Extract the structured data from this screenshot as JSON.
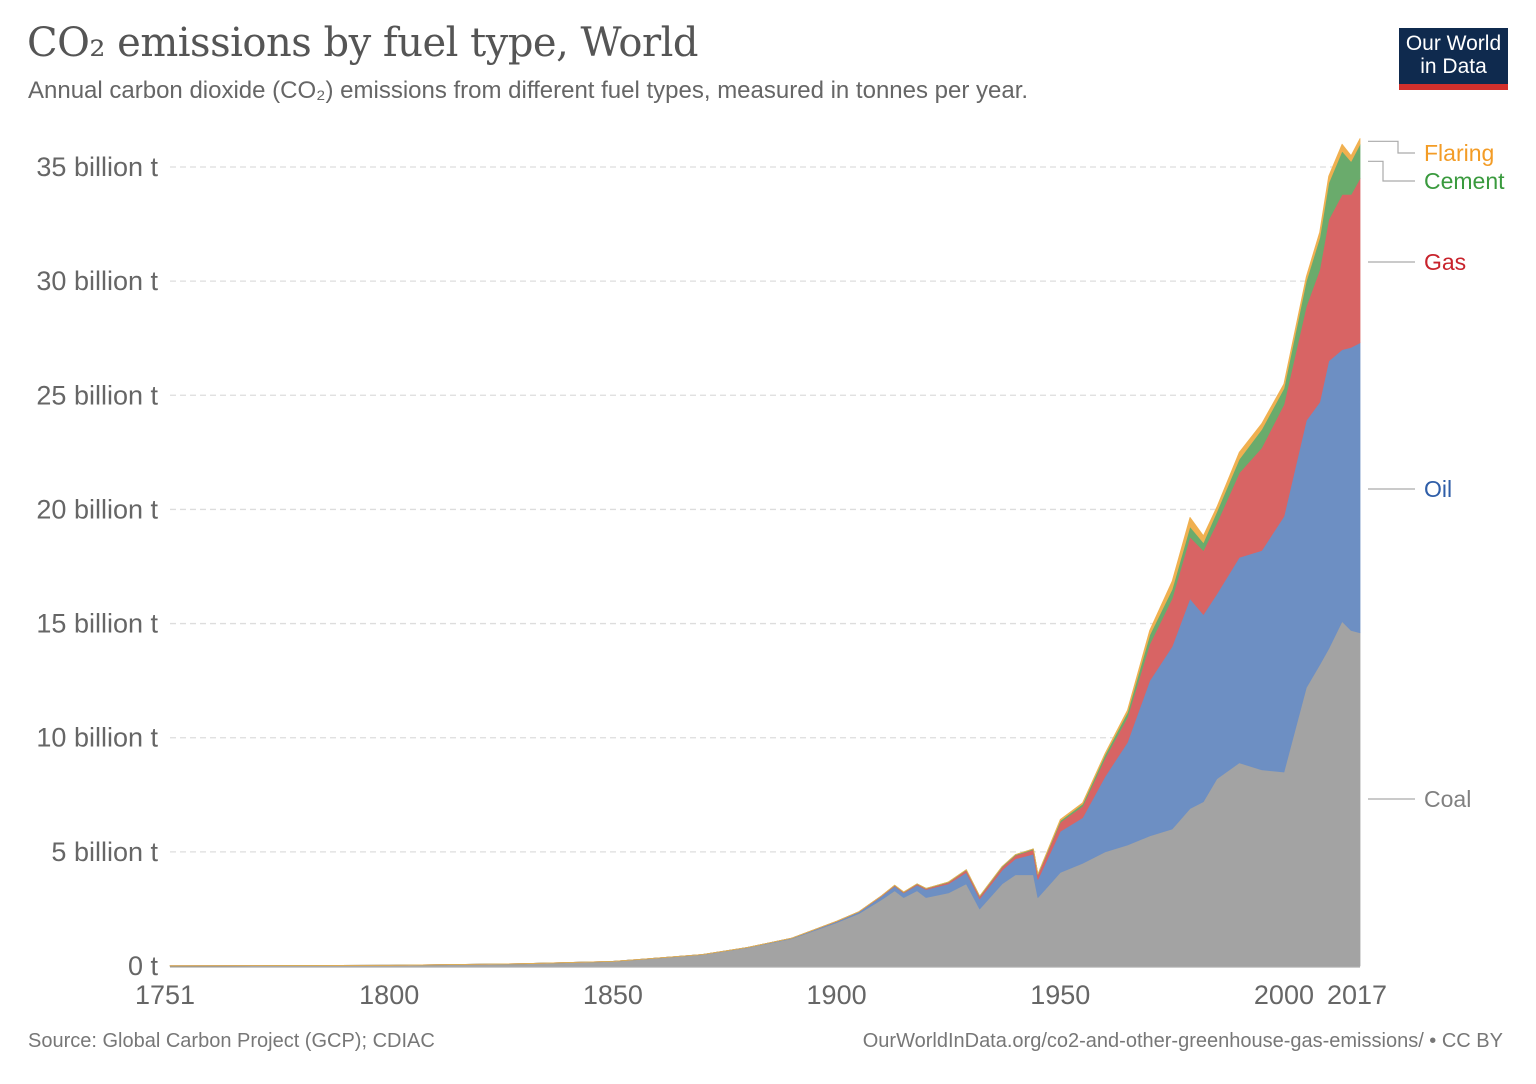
{
  "header": {
    "title": "CO₂ emissions by fuel type, World",
    "subtitle": "Annual carbon dioxide (CO₂) emissions from different fuel types, measured in tonnes per year.",
    "logo_text": [
      "Our World",
      "in Data"
    ]
  },
  "footer": {
    "source": "Source: Global Carbon Project (GCP); CDIAC",
    "url": "OurWorldInData.org/co2-and-other-greenhouse-gas-emissions/ • CC BY"
  },
  "chart_data": {
    "type": "area",
    "stacked": true,
    "title": "CO₂ emissions by fuel type, World",
    "xlim": [
      1751,
      2017
    ],
    "ylim": [
      0,
      35
    ],
    "y_unit": "billion t",
    "grid": true,
    "legend_placement": "right",
    "x_ticks": [
      "1751",
      "1800",
      "1850",
      "1900",
      "1950",
      "2000",
      "2017"
    ],
    "x_tick_values": [
      1751,
      1800,
      1850,
      1900,
      1950,
      2000,
      2017
    ],
    "y_ticks": [
      "0 t",
      "5 billion t",
      "10 billion t",
      "15 billion t",
      "20 billion t",
      "25 billion t",
      "30 billion t",
      "35 billion t"
    ],
    "y_tick_values": [
      0,
      5,
      10,
      15,
      20,
      25,
      30,
      35
    ],
    "x": [
      1751,
      1800,
      1830,
      1850,
      1860,
      1870,
      1880,
      1890,
      1900,
      1905,
      1910,
      1913,
      1915,
      1918,
      1920,
      1925,
      1929,
      1932,
      1937,
      1940,
      1944,
      1945,
      1950,
      1955,
      1960,
      1965,
      1970,
      1975,
      1979,
      1982,
      1985,
      1990,
      1995,
      2000,
      2005,
      2008,
      2010,
      2013,
      2015,
      2017
    ],
    "series": [
      {
        "name": "Coal",
        "fill": "#a3a3a3",
        "label_color": "#808080",
        "values": [
          0.009,
          0.03,
          0.1,
          0.2,
          0.35,
          0.5,
          0.8,
          1.2,
          1.9,
          2.3,
          2.9,
          3.3,
          3.0,
          3.3,
          3.0,
          3.2,
          3.6,
          2.5,
          3.6,
          4.0,
          4.0,
          3.0,
          4.1,
          4.5,
          5.0,
          5.3,
          5.7,
          6.0,
          6.9,
          7.2,
          8.2,
          8.9,
          8.6,
          8.5,
          12.2,
          13.2,
          13.9,
          15.1,
          14.7,
          14.6
        ]
      },
      {
        "name": "Oil",
        "fill": "#6d8fc3",
        "label_color": "#2f5ea8",
        "values": [
          0,
          0,
          0,
          0,
          0,
          0.002,
          0.01,
          0.02,
          0.05,
          0.07,
          0.15,
          0.2,
          0.2,
          0.25,
          0.35,
          0.4,
          0.5,
          0.45,
          0.6,
          0.7,
          0.9,
          0.8,
          1.8,
          2.0,
          3.3,
          4.5,
          6.8,
          8.0,
          9.2,
          8.2,
          8.1,
          9.0,
          9.6,
          11.2,
          11.7,
          11.5,
          12.6,
          11.9,
          12.4,
          12.7
        ]
      },
      {
        "name": "Gas",
        "fill": "#d86464",
        "label_color": "#c8232c",
        "values": [
          0,
          0,
          0,
          0,
          0,
          0,
          0,
          0,
          0.01,
          0.01,
          0.02,
          0.03,
          0.03,
          0.04,
          0.04,
          0.06,
          0.1,
          0.09,
          0.13,
          0.15,
          0.2,
          0.2,
          0.4,
          0.5,
          0.8,
          1.1,
          1.6,
          2.1,
          2.7,
          2.8,
          3.1,
          3.7,
          4.5,
          4.9,
          5.0,
          5.8,
          6.2,
          6.8,
          6.7,
          7.2
        ]
      },
      {
        "name": "Cement",
        "fill": "#6aab6c",
        "label_color": "#3a9a3e",
        "values": [
          0,
          0,
          0,
          0,
          0,
          0,
          0,
          0,
          0,
          0,
          0,
          0.01,
          0.01,
          0.01,
          0.01,
          0.02,
          0.02,
          0.02,
          0.03,
          0.03,
          0.03,
          0.02,
          0.07,
          0.1,
          0.15,
          0.2,
          0.4,
          0.4,
          0.45,
          0.35,
          0.5,
          0.6,
          0.8,
          0.7,
          1.1,
          1.4,
          1.6,
          1.9,
          1.45,
          1.5
        ]
      },
      {
        "name": "Flaring",
        "fill": "#f0b050",
        "label_color": "#f39c26",
        "values": [
          0,
          0,
          0,
          0,
          0,
          0,
          0,
          0,
          0,
          0,
          0,
          0,
          0,
          0,
          0,
          0,
          0,
          0,
          0,
          0,
          0,
          0,
          0.05,
          0.05,
          0.06,
          0.1,
          0.2,
          0.35,
          0.4,
          0.3,
          0.2,
          0.3,
          0.25,
          0.2,
          0.2,
          0.25,
          0.3,
          0.3,
          0.25,
          0.25
        ]
      }
    ]
  }
}
